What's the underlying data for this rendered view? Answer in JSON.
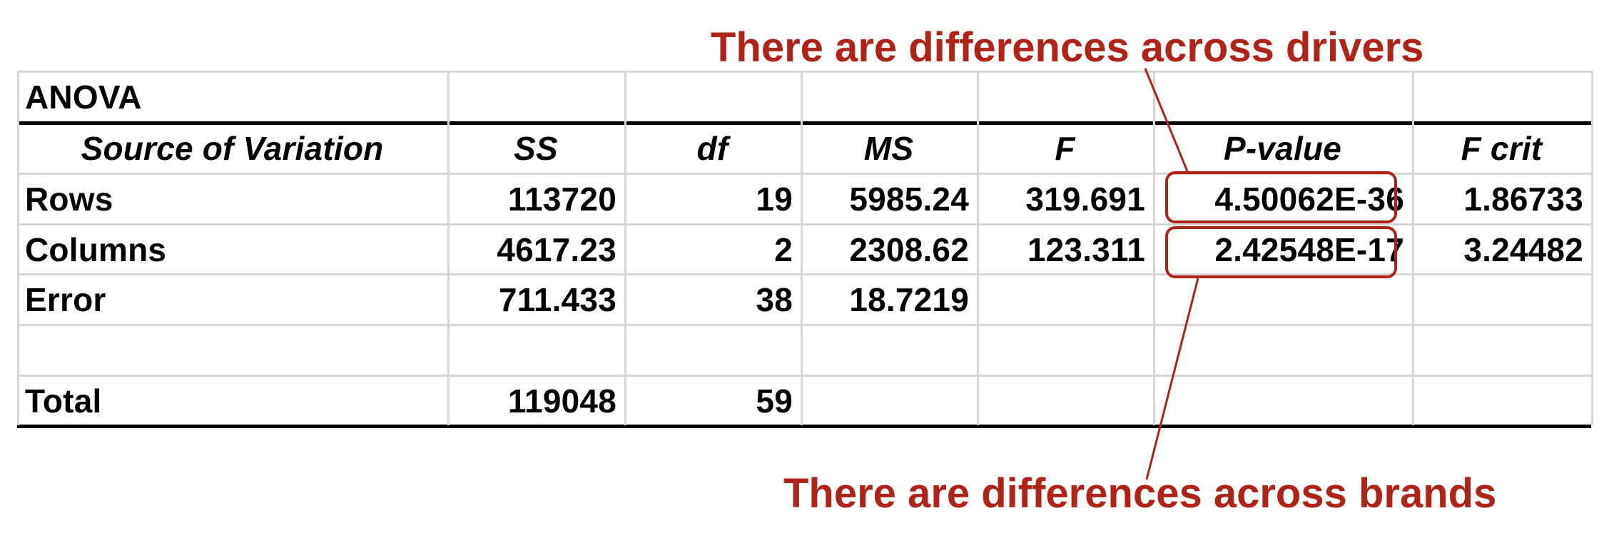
{
  "table": {
    "title": "ANOVA",
    "headers": [
      "Source of Variation",
      "SS",
      "df",
      "MS",
      "F",
      "P-value",
      "F crit"
    ],
    "rows": [
      [
        "Rows",
        "113720",
        "19",
        "5985.24",
        "319.691",
        "4.50062E-36",
        "1.86733"
      ],
      [
        "Columns",
        "4617.23",
        "2",
        "2308.62",
        "123.311",
        "2.42548E-17",
        "3.24482"
      ],
      [
        "Error",
        "711.433",
        "38",
        "18.7219",
        "",
        "",
        ""
      ],
      [
        "",
        "",
        "",
        "",
        "",
        "",
        ""
      ],
      [
        "Total",
        "119048",
        "59",
        "",
        "",
        "",
        ""
      ]
    ]
  },
  "annotations": {
    "drivers": "There are differences across drivers",
    "brands": "There are differences across brands"
  },
  "colors": {
    "accent": "#b02318",
    "gridline": "#d6d6d6",
    "rule": "#000000",
    "text": "#000000"
  }
}
